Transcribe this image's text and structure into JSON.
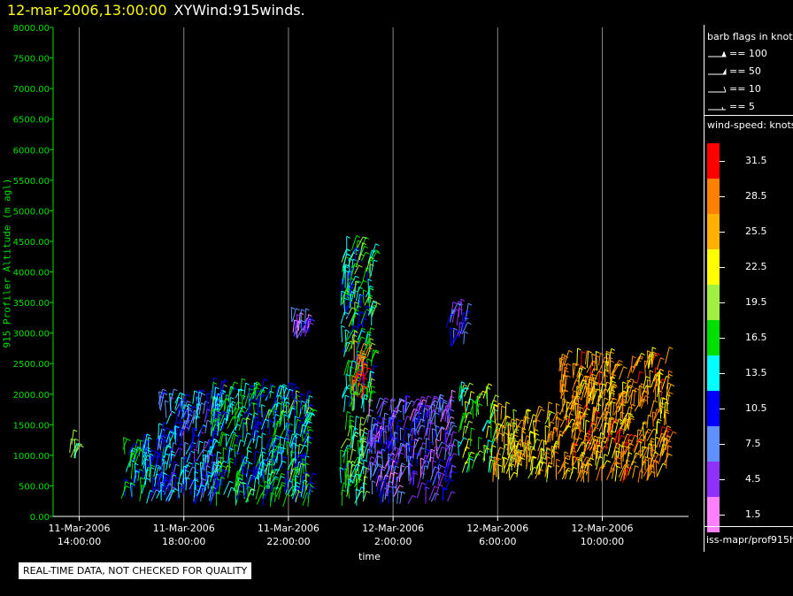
{
  "header": {
    "datetime": "12-mar-2006,13:00:00",
    "product": "XYWind:915winds."
  },
  "chart_data": {
    "type": "wind-barb",
    "xlabel": "time",
    "ylabel": "915 Profiler Altitude (m agl)",
    "ylim": [
      0,
      8000
    ],
    "yticks": [
      "0.00",
      "500.00",
      "1000.00",
      "1500.00",
      "2000.00",
      "2500.00",
      "3000.00",
      "3500.00",
      "4000.00",
      "4500.00",
      "5000.00",
      "5500.00",
      "6000.00",
      "6500.00",
      "7000.00",
      "7500.00",
      "8000.00"
    ],
    "xticks": [
      {
        "date": "11-Mar-2006",
        "time": "14:00:00",
        "hour": 14
      },
      {
        "date": "11-Mar-2006",
        "time": "18:00:00",
        "hour": 18
      },
      {
        "date": "11-Mar-2006",
        "time": "22:00:00",
        "hour": 22
      },
      {
        "date": "12-Mar-2006",
        "time": "2:00:00",
        "hour": 26
      },
      {
        "date": "12-Mar-2006",
        "time": "6:00:00",
        "hour": 30
      },
      {
        "date": "12-Mar-2006",
        "time": "10:00:00",
        "hour": 34
      }
    ],
    "xlim_hours": [
      13,
      37.3
    ],
    "grid": "vertical",
    "clusters": [
      {
        "t0": 13.6,
        "t1": 13.9,
        "h0": 900,
        "h1": 1200,
        "speed": 17,
        "density": 0.5
      },
      {
        "t0": 15.6,
        "t1": 17.2,
        "h0": 200,
        "h1": 1100,
        "speed": 13,
        "density": 1
      },
      {
        "t0": 17.0,
        "t1": 19.3,
        "h0": 200,
        "h1": 1900,
        "speed": 10,
        "density": 1
      },
      {
        "t0": 19.0,
        "t1": 22.8,
        "h0": 150,
        "h1": 2000,
        "speed": 14,
        "density": 1
      },
      {
        "t0": 22.0,
        "t1": 22.8,
        "h0": 2900,
        "h1": 3200,
        "speed": 6,
        "density": 0.6
      },
      {
        "t0": 24.0,
        "t1": 25.2,
        "h0": 1700,
        "h1": 4400,
        "speed": 15,
        "density": 1
      },
      {
        "t0": 24.4,
        "t1": 24.9,
        "h0": 1900,
        "h1": 2600,
        "speed": 31,
        "density": 1
      },
      {
        "t0": 24.0,
        "t1": 25.0,
        "h0": 150,
        "h1": 1500,
        "speed": 16,
        "density": 1
      },
      {
        "t0": 25.0,
        "t1": 28.2,
        "h0": 200,
        "h1": 1800,
        "speed": 7,
        "density": 1
      },
      {
        "t0": 28.0,
        "t1": 28.8,
        "h0": 2700,
        "h1": 3300,
        "speed": 8,
        "density": 0.6
      },
      {
        "t0": 28.5,
        "t1": 29.8,
        "h0": 700,
        "h1": 2000,
        "speed": 18,
        "density": 0.7
      },
      {
        "t0": 29.8,
        "t1": 32.3,
        "h0": 550,
        "h1": 1600,
        "speed": 24,
        "density": 1
      },
      {
        "t0": 32.3,
        "t1": 36.5,
        "h0": 550,
        "h1": 2500,
        "speed": 26,
        "density": 1
      }
    ]
  },
  "legend": {
    "barb_title": "barb flags in knots",
    "barbs": [
      "== 100",
      "== 50",
      "== 10",
      "== 5"
    ],
    "speed_title": "wind-speed: knots",
    "scale": [
      {
        "label": "31.5",
        "color": "#ff0000"
      },
      {
        "label": "28.5",
        "color": "#ff8000"
      },
      {
        "label": "25.5",
        "color": "#ffb000"
      },
      {
        "label": "22.5",
        "color": "#ffff00"
      },
      {
        "label": "19.5",
        "color": "#a0f040"
      },
      {
        "label": "16.5",
        "color": "#00e000"
      },
      {
        "label": "13.5",
        "color": "#00ffff"
      },
      {
        "label": "10.5",
        "color": "#0000ff"
      },
      {
        "label": "7.5",
        "color": "#6090ff"
      },
      {
        "label": "4.5",
        "color": "#9030ff"
      },
      {
        "label": "1.5",
        "color": "#ff80ff"
      }
    ]
  },
  "source": "iss-mapr/prof915h",
  "disclaimer": "REAL-TIME DATA, NOT CHECKED FOR QUALITY"
}
